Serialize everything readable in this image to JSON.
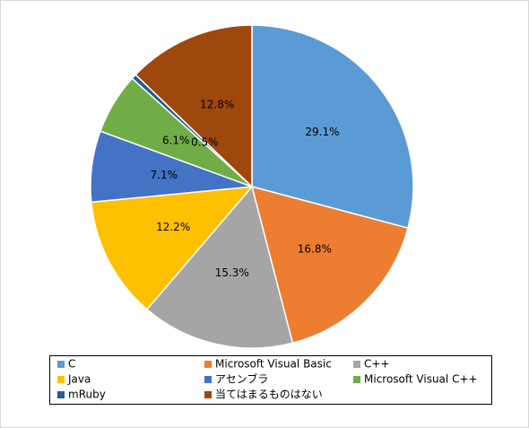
{
  "chart_data": {
    "type": "pie",
    "categories": [
      "C",
      "Microsoft Visual Basic",
      "C++",
      "Java",
      "アセンブラ",
      "Microsoft Visual C++",
      "mRuby",
      "当てはまるものはない"
    ],
    "values": [
      29.1,
      16.8,
      15.3,
      12.2,
      7.1,
      6.1,
      0.5,
      12.8
    ],
    "value_labels": [
      "29.1%",
      "16.8%",
      "15.3%",
      "12.2%",
      "7.1%",
      "6.1%",
      "0.5%",
      "12.8%"
    ],
    "colors": [
      "#5b9bd5",
      "#ed7d31",
      "#a5a5a5",
      "#ffc000",
      "#4472c4",
      "#70ad47",
      "#255e91",
      "#9e480e"
    ],
    "legend": "bottom"
  }
}
